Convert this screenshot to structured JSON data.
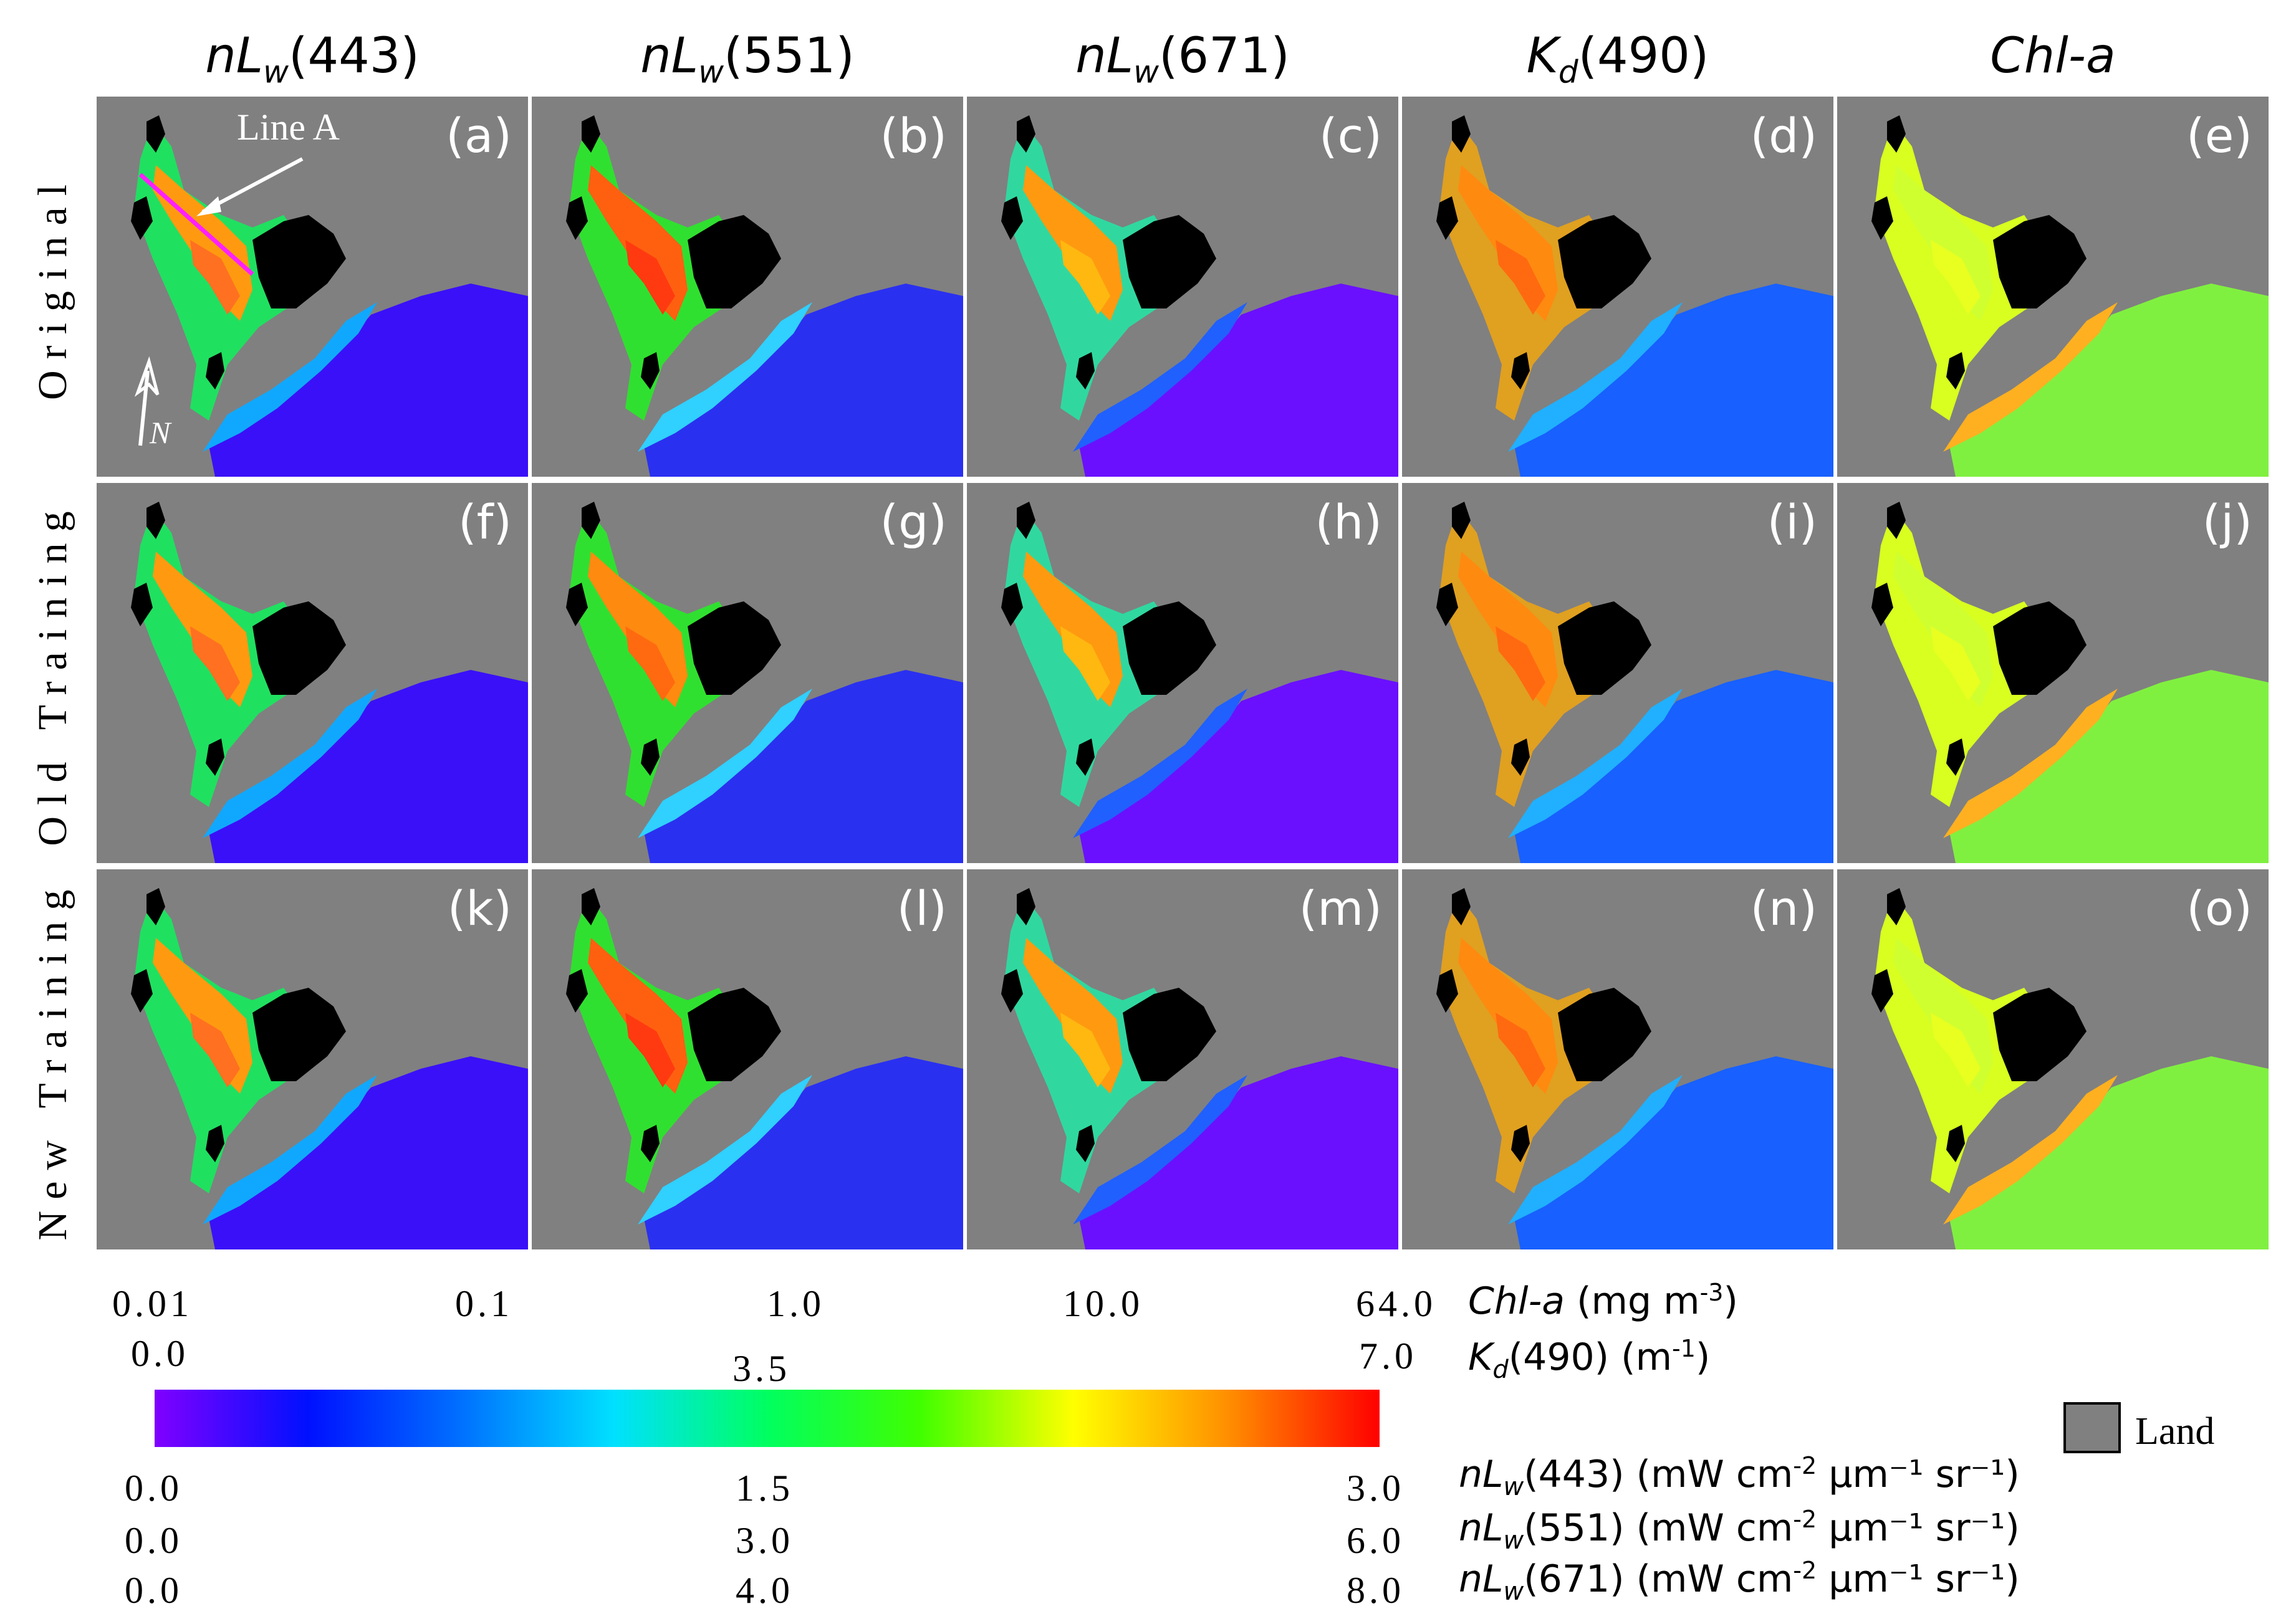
{
  "columns": [
    {
      "italic": "nL",
      "sub": "w",
      "rest": "(443)"
    },
    {
      "italic": "nL",
      "sub": "w",
      "rest": "(551)"
    },
    {
      "italic": "nL",
      "sub": "w",
      "rest": "(671)"
    },
    {
      "italic": "K",
      "sub": "d",
      "rest": "(490)"
    },
    {
      "italic": "Chl-a",
      "sub": "",
      "rest": ""
    }
  ],
  "rows": [
    {
      "label": "Original"
    },
    {
      "label": "Old Training"
    },
    {
      "label": "New Training"
    }
  ],
  "panels": [
    {
      "label": "(a)",
      "palette": "blue443"
    },
    {
      "label": "(b)",
      "palette": "blue551"
    },
    {
      "label": "(c)",
      "palette": "violet671"
    },
    {
      "label": "(d)",
      "palette": "kd"
    },
    {
      "label": "(e)",
      "palette": "chl"
    },
    {
      "label": "(f)",
      "palette": "blue443"
    },
    {
      "label": "(g)",
      "palette": "blue551b"
    },
    {
      "label": "(h)",
      "palette": "violet671"
    },
    {
      "label": "(i)",
      "palette": "kd"
    },
    {
      "label": "(j)",
      "palette": "chl"
    },
    {
      "label": "(k)",
      "palette": "blue443"
    },
    {
      "label": "(l)",
      "palette": "blue551"
    },
    {
      "label": "(m)",
      "palette": "violet671"
    },
    {
      "label": "(n)",
      "palette": "kd"
    },
    {
      "label": "(o)",
      "palette": "chl"
    }
  ],
  "annotations": {
    "line_label": "Line A",
    "north_label": "N"
  },
  "colorbar": {
    "stops": [
      "#8000ff",
      "#0010ff",
      "#0070ff",
      "#00e0ff",
      "#00ff60",
      "#40ff00",
      "#ffff00",
      "#ff9000",
      "#ff0000"
    ]
  },
  "scales": {
    "chl": {
      "ticks": [
        "0.01",
        "0.1",
        "1.0",
        "10.0",
        "64.0"
      ],
      "unit_italic": "Chl-a",
      "unit_sub": "",
      "unit_rest": " (mg m",
      "unit_sup": "-3",
      "unit_end": ")"
    },
    "kd": {
      "ticks": [
        "0.0",
        "3.5",
        "7.0"
      ],
      "unit_italic": "K",
      "unit_sub": "d",
      "unit_rest": "(490) (m",
      "unit_sup": "-1",
      "unit_end": ")"
    },
    "nlw443": {
      "ticks": [
        "0.0",
        "1.5",
        "3.0"
      ],
      "unit_italic": "nL",
      "unit_sub": "w",
      "unit_rest": "(443) (mW cm",
      "unit_sup": "-2",
      "unit_end": " μm⁻¹ sr⁻¹)"
    },
    "nlw551": {
      "ticks": [
        "0.0",
        "3.0",
        "6.0"
      ],
      "unit_italic": "nL",
      "unit_sub": "w",
      "unit_rest": "(551) (mW cm",
      "unit_sup": "-2",
      "unit_end": " μm⁻¹ sr⁻¹)"
    },
    "nlw671": {
      "ticks": [
        "0.0",
        "4.0",
        "8.0"
      ],
      "unit_italic": "nL",
      "unit_sub": "w",
      "unit_rest": "(671) (mW cm",
      "unit_sup": "-2",
      "unit_end": " μm⁻¹ sr⁻¹)"
    }
  },
  "legend": {
    "land_label": "Land",
    "land_color": "#808080"
  },
  "palettes": {
    "blue443": {
      "ocean": "#3a10f8",
      "shelf": "#10a8ff",
      "coast": "#20e060",
      "river": "#ff9a10",
      "inner": "#ff7020"
    },
    "blue551": {
      "ocean": "#2a30f0",
      "shelf": "#30d0ff",
      "coast": "#30e030",
      "river": "#ff6010",
      "inner": "#ff3a10"
    },
    "blue551b": {
      "ocean": "#2a30f0",
      "shelf": "#30d0ff",
      "coast": "#30e030",
      "river": "#ff8a10",
      "inner": "#ff6a10"
    },
    "violet671": {
      "ocean": "#6a10ff",
      "shelf": "#2060ff",
      "coast": "#30d8a0",
      "river": "#ff9a10",
      "inner": "#ffb810"
    },
    "kd": {
      "ocean": "#1860ff",
      "shelf": "#20b0ff",
      "coast": "#e0a020",
      "river": "#ff8a10",
      "inner": "#ff6a10"
    },
    "chl": {
      "ocean": "#80f040",
      "shelf": "#ffb020",
      "coast": "#d8ff20",
      "river": "#d0ff30",
      "inner": "#e8ff20"
    }
  }
}
